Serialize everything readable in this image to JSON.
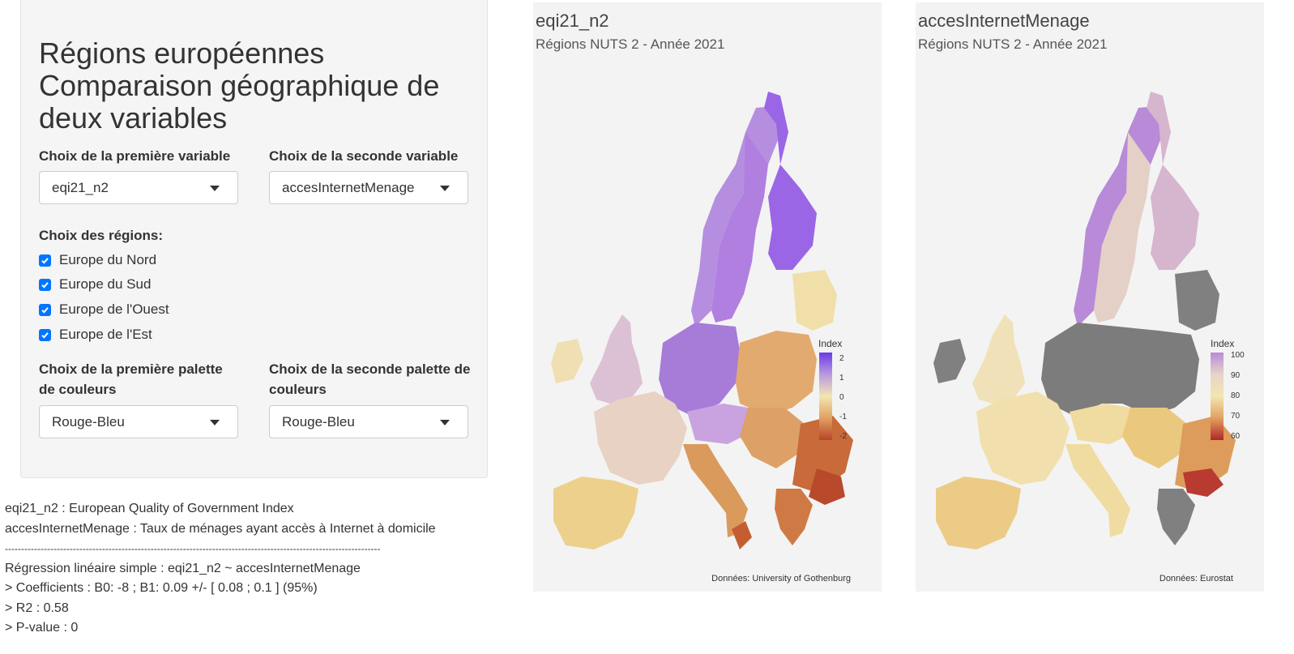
{
  "panel": {
    "title_line1": "Régions européennes",
    "title_line2": "Comparaison géographique de deux variables",
    "var1": {
      "label": "Choix de la première variable",
      "value": "eqi21_n2"
    },
    "var2": {
      "label": "Choix de la seconde variable",
      "value": "accesInternetMenage"
    },
    "regions": {
      "label": "Choix des régions:",
      "items": [
        {
          "label": "Europe du Nord",
          "checked": true
        },
        {
          "label": "Europe du Sud",
          "checked": true
        },
        {
          "label": "Europe de l'Ouest",
          "checked": true
        },
        {
          "label": "Europe de l'Est",
          "checked": true
        }
      ]
    },
    "palette1": {
      "label": "Choix de la première palette de couleurs",
      "value": "Rouge-Bleu"
    },
    "palette2": {
      "label": "Choix de la seconde palette de couleurs",
      "value": "Rouge-Bleu"
    }
  },
  "output": {
    "line1": "eqi21_n2 : European Quality of Government Index",
    "line2": "accesInternetMenage : Taux de ménages ayant accès à Internet à domicile",
    "separator": "--------------------------------------------------------------------------------------------------------------------",
    "line3": "Régression linéaire simple : eqi21_n2 ~ accesInternetMenage",
    "line4": "> Coefficients : B0: -8 ; B1: 0.09 +/- [ 0.08 ; 0.1 ] (95%)",
    "line5": "> R2 : 0.58",
    "line6": "> P-value : 0"
  },
  "map1": {
    "title": "eqi21_n2",
    "subtitle": "Régions NUTS 2 - Année 2021",
    "legend_title": "Index",
    "legend_ticks": [
      "2",
      "1",
      "0",
      "-1",
      "-2"
    ],
    "caption": "Données: University of Gothenburg"
  },
  "map2": {
    "title": "accesInternetMenage",
    "subtitle": "Régions NUTS 2 - Année 2021",
    "legend_title": "Index",
    "legend_ticks": [
      "100",
      "90",
      "80",
      "70",
      "60"
    ],
    "caption": "Données: Eurostat"
  },
  "colors": {
    "purple": "#a56fe6",
    "light_purple": "#c9a6dc",
    "pale": "#e8d9c6",
    "yellow": "#f1dc9a",
    "orange": "#dfa464",
    "red": "#c4552f",
    "grey": "#808080",
    "checkbox": "#0075ff"
  }
}
